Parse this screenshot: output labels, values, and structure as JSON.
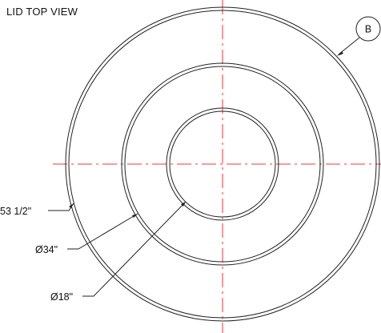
{
  "title": "LID TOP VIEW",
  "detail_callout": "B",
  "dimensions": {
    "outer": "53 1/2\"",
    "middle": "Ø34\"",
    "inner": "Ø18\""
  },
  "colors": {
    "centerline": "#e8393c",
    "outline": "#222222",
    "text": "#111111"
  }
}
